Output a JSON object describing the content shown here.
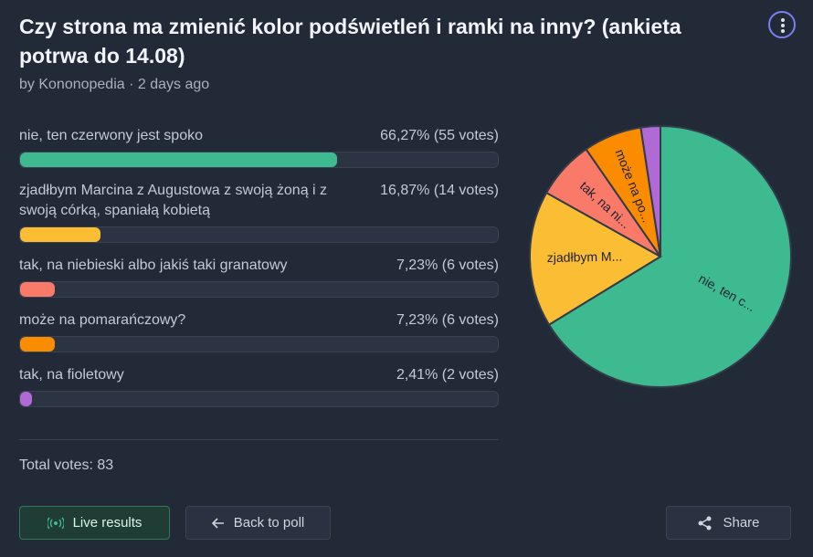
{
  "title": "Czy strona ma zmienić kolor podświetleń i ramki na inny? (ankieta potrwa do 14.08)",
  "meta": "by Kononopedia · 2 days ago",
  "options": [
    {
      "label": "nie, ten czerwony jest spoko",
      "result": "66,27% (55 votes)",
      "percent": 66.27,
      "votes": 55,
      "color": "#3dba8f",
      "pie_label": "nie, ten c..."
    },
    {
      "label": "zjadłbym Marcina z Augustowa z swoją żoną i z swoją córką, spaniałą kobietą",
      "result": "16,87% (14 votes)",
      "percent": 16.87,
      "votes": 14,
      "color": "#fbbd34",
      "pie_label": "zjadłbym M..."
    },
    {
      "label": "tak, na niebieski albo jakiś taki granatowy",
      "result": "7,23% (6 votes)",
      "percent": 7.23,
      "votes": 6,
      "color": "#fa7a6a",
      "pie_label": "tak, na ni..."
    },
    {
      "label": "może na pomarańczowy?",
      "result": "7,23% (6 votes)",
      "percent": 7.23,
      "votes": 6,
      "color": "#fb8c00",
      "pie_label": "może na po..."
    },
    {
      "label": "tak, na fioletowy",
      "result": "2,41% (2 votes)",
      "percent": 2.41,
      "votes": 2,
      "color": "#b06ad6"
    }
  ],
  "total": "Total votes: 83",
  "buttons": {
    "live": "Live results",
    "back": "Back to poll",
    "share": "Share"
  }
}
